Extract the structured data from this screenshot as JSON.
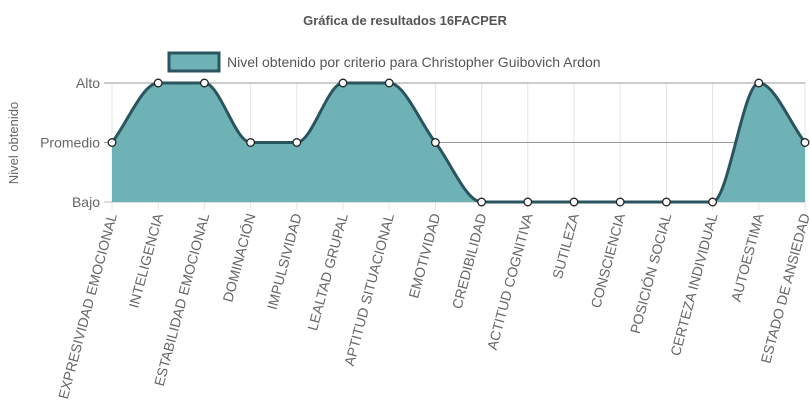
{
  "chart_data": {
    "type": "area",
    "title": "Gráfica de resultados 16FACPER",
    "ylabel": "Nivel obtenido",
    "xlabel": "",
    "levels": [
      "Bajo",
      "Promedio",
      "Alto"
    ],
    "ylim": [
      0,
      2
    ],
    "grid": true,
    "legend_position": "top",
    "categories": [
      "EXPRESIVIDAD EMOCIONAL",
      "INTELIGENCIA",
      "ESTABILIDAD EMOCIONAL",
      "DOMINACIÓN",
      "IMPULSIVIDAD",
      "LEALTAD GRUPAL",
      "APTITUD SITUACIONAL",
      "EMOTIVIDAD",
      "CREDIBILIDAD",
      "ACTITUD COGNITIVA",
      "SUTILEZA",
      "CONSCIENCIA",
      "POSICIÓN SOCIAL",
      "CERTEZA INDIVIDUAL",
      "AUTOESTIMA",
      "ESTADO DE ANSIEDAD"
    ],
    "series": [
      {
        "name": "Nivel obtenido por criterio para Christopher Guibovich Ardon",
        "values": [
          1,
          2,
          2,
          1,
          1,
          2,
          2,
          1,
          0,
          0,
          0,
          0,
          0,
          0,
          2,
          1
        ],
        "fill_color": "#6fb2b6",
        "line_color": "#2a5560"
      }
    ]
  }
}
